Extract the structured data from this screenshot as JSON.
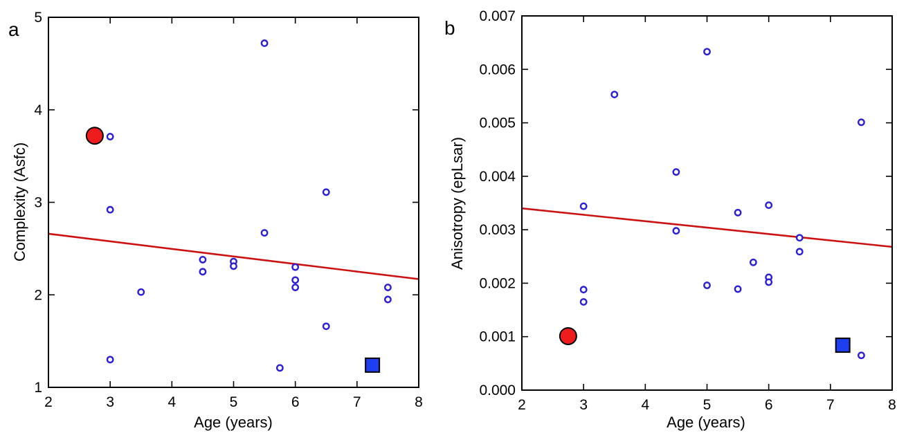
{
  "chart_data": [
    {
      "type": "scatter",
      "panel_label": "a",
      "xlabel": "Age (years)",
      "ylabel": "Complexity (Asfc)",
      "xlim": [
        2,
        8
      ],
      "ylim": [
        1,
        5
      ],
      "x_ticks": [
        "2",
        "3",
        "4",
        "5",
        "6",
        "7",
        "8"
      ],
      "y_ticks": [
        "1",
        "2",
        "3",
        "4",
        "5"
      ],
      "series": [
        {
          "marker": "open-circle",
          "color": "#2a1fd6",
          "points": [
            {
              "x": 3.0,
              "y": 3.71
            },
            {
              "x": 3.0,
              "y": 2.92
            },
            {
              "x": 3.0,
              "y": 1.3
            },
            {
              "x": 3.5,
              "y": 2.03
            },
            {
              "x": 4.5,
              "y": 2.38
            },
            {
              "x": 4.5,
              "y": 2.25
            },
            {
              "x": 5.0,
              "y": 2.36
            },
            {
              "x": 5.0,
              "y": 2.31
            },
            {
              "x": 5.5,
              "y": 4.72
            },
            {
              "x": 5.5,
              "y": 2.67
            },
            {
              "x": 5.75,
              "y": 1.21
            },
            {
              "x": 6.0,
              "y": 2.3
            },
            {
              "x": 6.0,
              "y": 2.16
            },
            {
              "x": 6.0,
              "y": 2.08
            },
            {
              "x": 6.5,
              "y": 3.11
            },
            {
              "x": 6.5,
              "y": 1.66
            },
            {
              "x": 7.5,
              "y": 2.08
            },
            {
              "x": 7.5,
              "y": 1.95
            }
          ]
        },
        {
          "marker": "filled-circle",
          "color": "#ee1c1c",
          "points": [
            {
              "x": 2.75,
              "y": 3.72
            }
          ]
        },
        {
          "marker": "filled-square",
          "color": "#1d3ff0",
          "points": [
            {
              "x": 7.25,
              "y": 1.24
            }
          ]
        }
      ],
      "trend_line": {
        "color": "#cc1111",
        "x": [
          2,
          8
        ],
        "y": [
          2.66,
          2.17
        ]
      }
    },
    {
      "type": "scatter",
      "panel_label": "b",
      "xlabel": "Age (years)",
      "ylabel": "Anisotropy (epLsar)",
      "xlim": [
        2,
        8
      ],
      "ylim": [
        0,
        0.007
      ],
      "x_ticks": [
        "2",
        "3",
        "4",
        "5",
        "6",
        "7",
        "8"
      ],
      "y_ticks": [
        "0.000",
        "0.001",
        "0.002",
        "0.003",
        "0.004",
        "0.005",
        "0.006",
        "0.007"
      ],
      "series": [
        {
          "marker": "open-circle",
          "color": "#2a1fd6",
          "points": [
            {
              "x": 3.0,
              "y": 0.00344
            },
            {
              "x": 3.0,
              "y": 0.00188
            },
            {
              "x": 3.0,
              "y": 0.00165
            },
            {
              "x": 3.5,
              "y": 0.00553
            },
            {
              "x": 4.5,
              "y": 0.00408
            },
            {
              "x": 4.5,
              "y": 0.00298
            },
            {
              "x": 5.0,
              "y": 0.00633
            },
            {
              "x": 5.0,
              "y": 0.00196
            },
            {
              "x": 5.5,
              "y": 0.00332
            },
            {
              "x": 5.5,
              "y": 0.00189
            },
            {
              "x": 5.75,
              "y": 0.00239
            },
            {
              "x": 6.0,
              "y": 0.00346
            },
            {
              "x": 6.0,
              "y": 0.00211
            },
            {
              "x": 6.0,
              "y": 0.00202
            },
            {
              "x": 6.5,
              "y": 0.00285
            },
            {
              "x": 6.5,
              "y": 0.00259
            },
            {
              "x": 7.5,
              "y": 0.00501
            },
            {
              "x": 7.5,
              "y": 0.00065
            }
          ]
        },
        {
          "marker": "filled-circle",
          "color": "#ee1c1c",
          "points": [
            {
              "x": 2.75,
              "y": 0.00101
            }
          ]
        },
        {
          "marker": "filled-square",
          "color": "#1d3ff0",
          "points": [
            {
              "x": 7.2,
              "y": 0.00084
            }
          ]
        }
      ],
      "trend_line": {
        "color": "#cc1111",
        "x": [
          2,
          8
        ],
        "y": [
          0.0034,
          0.00268
        ]
      }
    }
  ]
}
